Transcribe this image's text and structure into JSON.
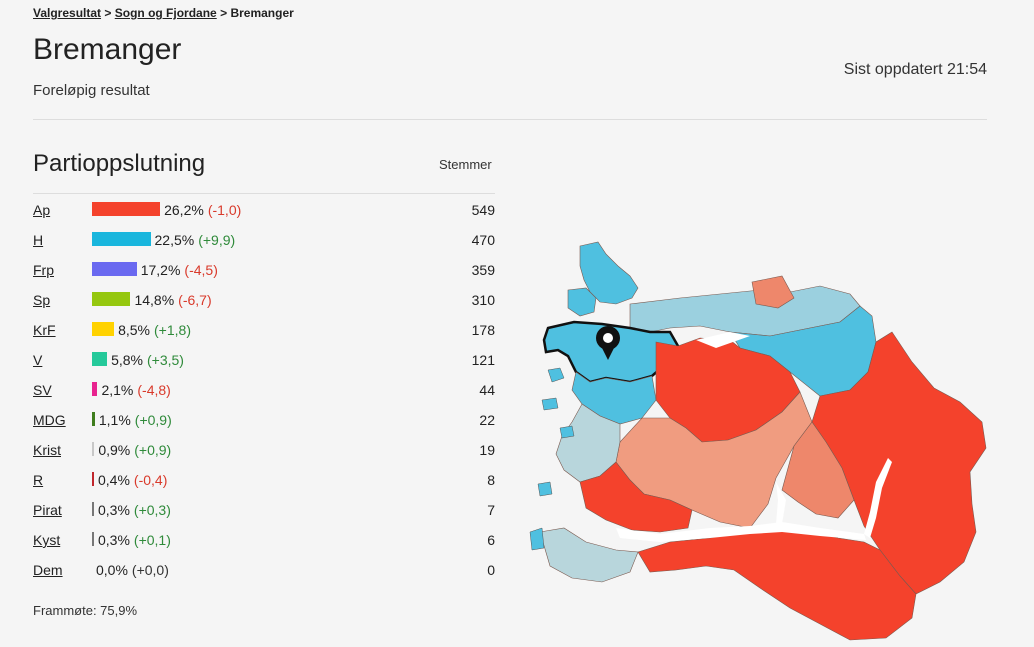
{
  "breadcrumb": {
    "items": [
      "Valgresultat",
      "Sogn og Fjordane"
    ],
    "current": "Bremanger",
    "sep": ">"
  },
  "header": {
    "title": "Bremanger",
    "subtitle": "Foreløpig resultat",
    "updated": "Sist oppdatert 21:54"
  },
  "results": {
    "title": "Partioppslutning",
    "votes_header": "Stemmer",
    "parties": [
      {
        "name": "Ap",
        "pct": "26,2%",
        "change": "(-1,0)",
        "trend": "neg",
        "votes": "549",
        "share": 26.2,
        "color": "#f4422c"
      },
      {
        "name": "H",
        "pct": "22,5%",
        "change": "(+9,9)",
        "trend": "pos",
        "votes": "470",
        "share": 22.5,
        "color": "#19b6dd"
      },
      {
        "name": "Frp",
        "pct": "17,2%",
        "change": "(-4,5)",
        "trend": "neg",
        "votes": "359",
        "share": 17.2,
        "color": "#6a69f0"
      },
      {
        "name": "Sp",
        "pct": "14,8%",
        "change": "(-6,7)",
        "trend": "neg",
        "votes": "310",
        "share": 14.8,
        "color": "#95c70f"
      },
      {
        "name": "KrF",
        "pct": "8,5%",
        "change": "(+1,8)",
        "trend": "pos",
        "votes": "178",
        "share": 8.5,
        "color": "#ffd200"
      },
      {
        "name": "V",
        "pct": "5,8%",
        "change": "(+3,5)",
        "trend": "pos",
        "votes": "121",
        "share": 5.8,
        "color": "#25c99a"
      },
      {
        "name": "SV",
        "pct": "2,1%",
        "change": "(-4,8)",
        "trend": "neg",
        "votes": "44",
        "share": 2.1,
        "color": "#e8238f"
      },
      {
        "name": "MDG",
        "pct": "1,1%",
        "change": "(+0,9)",
        "trend": "pos",
        "votes": "22",
        "share": 1.1,
        "color": "#3f7d1d"
      },
      {
        "name": "Krist",
        "pct": "0,9%",
        "change": "(+0,9)",
        "trend": "pos",
        "votes": "19",
        "share": 0.9,
        "color": "#c8c8c8"
      },
      {
        "name": "R",
        "pct": "0,4%",
        "change": "(-0,4)",
        "trend": "neg",
        "votes": "8",
        "share": 0.4,
        "color": "#c0262c"
      },
      {
        "name": "Pirat",
        "pct": "0,3%",
        "change": "(+0,3)",
        "trend": "pos",
        "votes": "7",
        "share": 0.3,
        "color": "#777777"
      },
      {
        "name": "Kyst",
        "pct": "0,3%",
        "change": "(+0,1)",
        "trend": "pos",
        "votes": "6",
        "share": 0.3,
        "color": "#777777"
      },
      {
        "name": "Dem",
        "pct": "0,0%",
        "change": "(+0,0)",
        "trend": "zero",
        "votes": "0",
        "share": 0.0,
        "color": "#777777"
      }
    ],
    "turnout": "Frammøte: 75,9%"
  },
  "map": {
    "colors": {
      "ap_strong": "#f4422c",
      "ap_medium": "#ee876b",
      "ap_light": "#f09c80",
      "h_strong": "#4fc0e0",
      "h_light": "#9bd0df",
      "pale": "#b8d6dc",
      "fjord": "#ffffff",
      "selected_border": "#111111"
    },
    "marker_icon": "map-pin-icon"
  }
}
